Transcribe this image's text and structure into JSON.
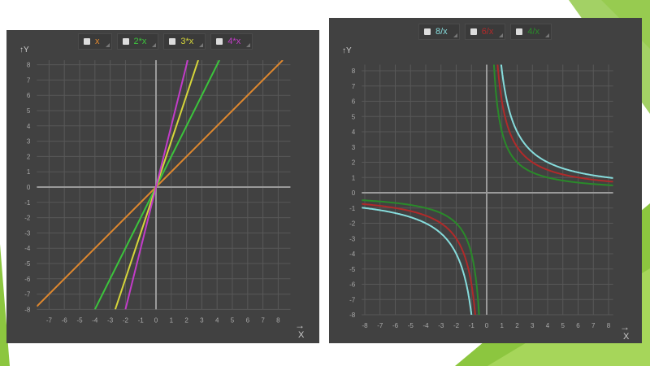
{
  "colors": {
    "panel": "#414141",
    "grid": "#585858",
    "axis": "#9a9a9a",
    "tick": "#aaaaaa",
    "slide_green": "#8cc63f"
  },
  "chart_data": [
    {
      "type": "line",
      "xlabel": "X",
      "ylabel": "Y",
      "xlim": [
        -7.8,
        8.8
      ],
      "ylim": [
        -8,
        8.3
      ],
      "grid": true,
      "legend_position": "top",
      "xticks": [
        -7,
        -6,
        -5,
        -4,
        -3,
        -2,
        -1,
        0,
        1,
        2,
        3,
        4,
        5,
        6,
        7,
        8
      ],
      "yticks": [
        -8,
        -7,
        -6,
        -5,
        -4,
        -3,
        -2,
        -1,
        0,
        1,
        2,
        3,
        4,
        5,
        6,
        7,
        8
      ],
      "series": [
        {
          "name": "x",
          "slope": 1,
          "color": "#e0882e"
        },
        {
          "name": "2*x",
          "slope": 2,
          "color": "#3cc43c"
        },
        {
          "name": "3*x",
          "slope": 3,
          "color": "#d6d63a"
        },
        {
          "name": "4*x",
          "slope": 4,
          "color": "#c23cc8"
        }
      ]
    },
    {
      "type": "line",
      "xlabel": "X",
      "ylabel": "Y",
      "xlim": [
        -8.2,
        8.3
      ],
      "ylim": [
        -8,
        8.4
      ],
      "grid": true,
      "legend_position": "top",
      "xticks": [
        -8,
        -7,
        -6,
        -5,
        -4,
        -3,
        -2,
        -1,
        0,
        1,
        2,
        3,
        4,
        5,
        6,
        7,
        8
      ],
      "yticks": [
        -8,
        -7,
        -6,
        -5,
        -4,
        -3,
        -2,
        -1,
        0,
        1,
        2,
        3,
        4,
        5,
        6,
        7,
        8
      ],
      "series": [
        {
          "name": "8/x",
          "numerator": 8,
          "color": "#86dcdc"
        },
        {
          "name": "6/x",
          "numerator": 6,
          "color": "#b02a2a"
        },
        {
          "name": "4/x",
          "numerator": 4,
          "color": "#2a8a2a"
        }
      ]
    }
  ]
}
